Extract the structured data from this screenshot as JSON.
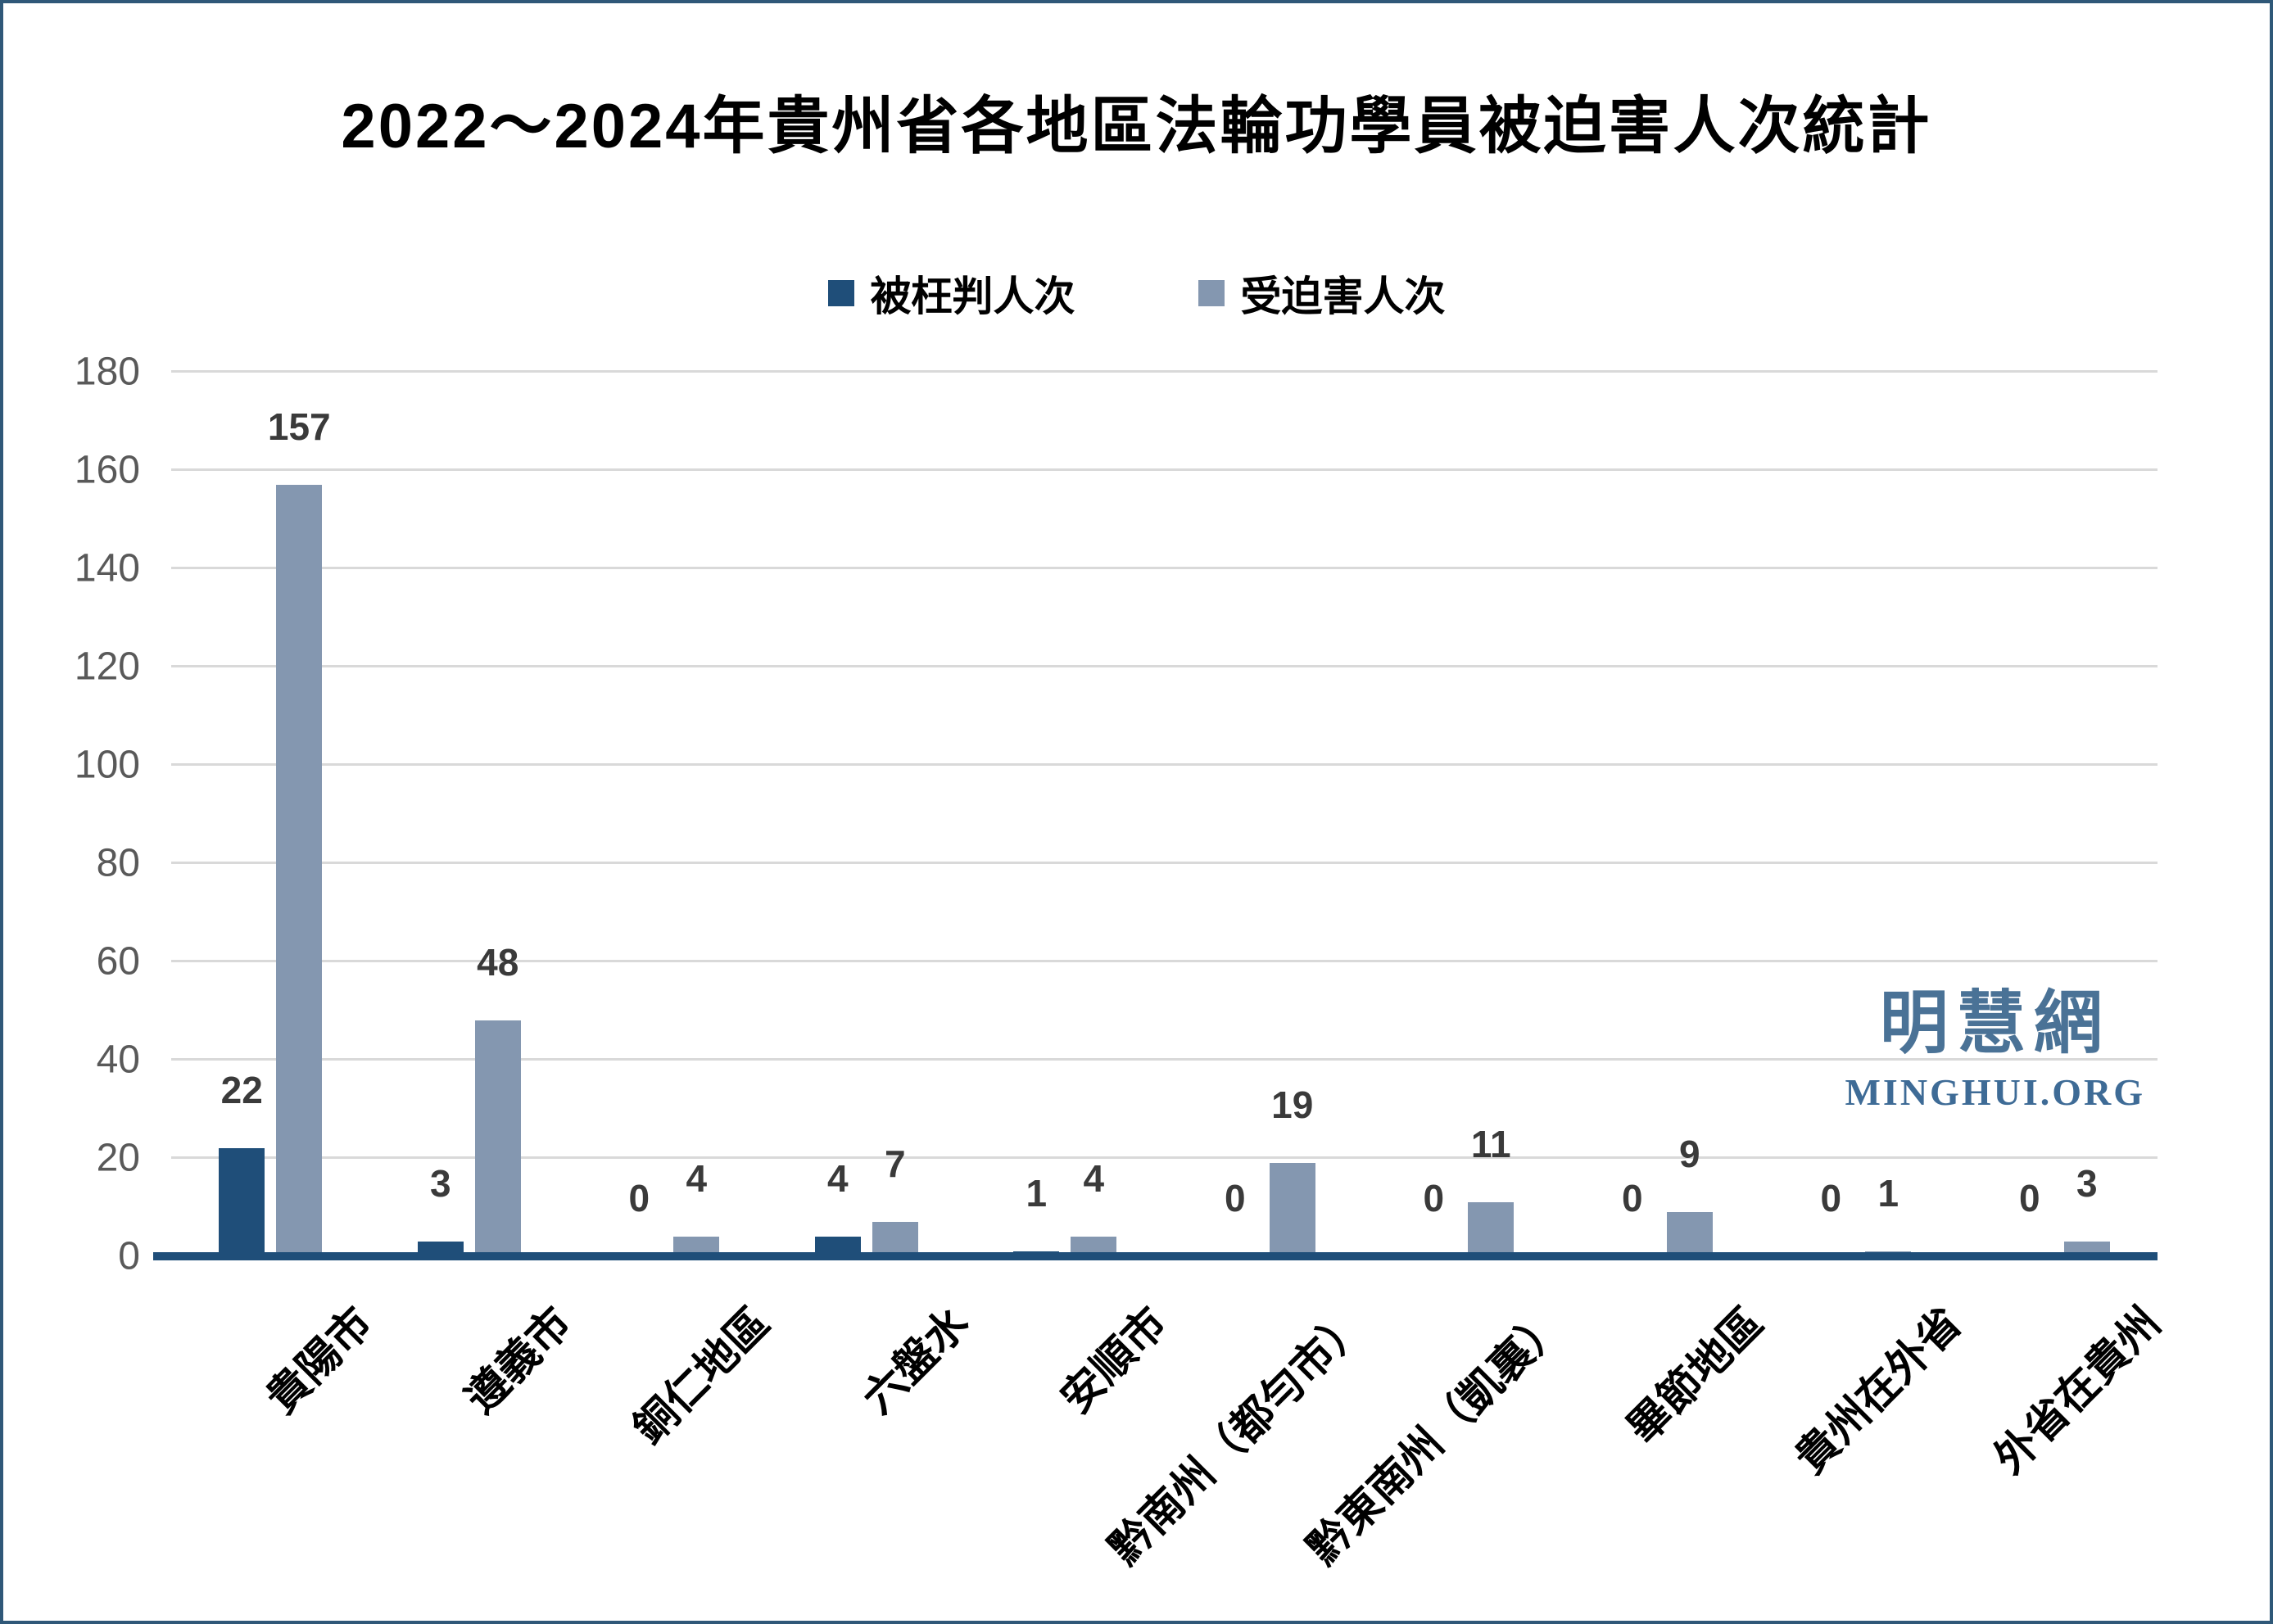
{
  "title": "2022～2024年貴州省各地區法輪功學員被迫害人次統計",
  "watermark": {
    "site_name_cn": "明慧網",
    "site_name_en": "MINGHUI.ORG"
  },
  "colors": {
    "series_sentenced": "#1F4E79",
    "series_persecuted": "#8497B0",
    "axis_line": "#1F4E79",
    "gridline": "#D9D9D9",
    "tick_label": "#595959",
    "value_label": "#3A3A3A",
    "watermark_blue": "#4A7296",
    "frame_border": "#2F5878"
  },
  "y_axis": {
    "min": 0,
    "max": 180,
    "step": 20,
    "tick_labels": [
      "0",
      "20",
      "40",
      "60",
      "80",
      "100",
      "120",
      "140",
      "160",
      "180"
    ]
  },
  "chart_data": {
    "type": "bar",
    "title": "2022～2024年貴州省各地區法輪功學員被迫害人次統計",
    "categories": [
      "貴陽市",
      "遵義市",
      "銅仁地區",
      "六盤水",
      "安順市",
      "黔南州（都勻市）",
      "黔東南州（凱裏）",
      "畢節地區",
      "貴州在外省",
      "外省在貴州"
    ],
    "series": [
      {
        "name": "被枉判人次",
        "color": "#1F4E79",
        "values": [
          22,
          3,
          0,
          4,
          1,
          0,
          0,
          0,
          0,
          0
        ]
      },
      {
        "name": "受迫害人次",
        "color": "#8497B0",
        "values": [
          157,
          48,
          4,
          7,
          4,
          19,
          11,
          9,
          1,
          3
        ]
      }
    ],
    "xlabel": "",
    "ylabel": "",
    "ylim": [
      0,
      180
    ],
    "grid": true,
    "legend_position": "top",
    "value_labels": true,
    "x_label_rotation_deg": 45
  }
}
